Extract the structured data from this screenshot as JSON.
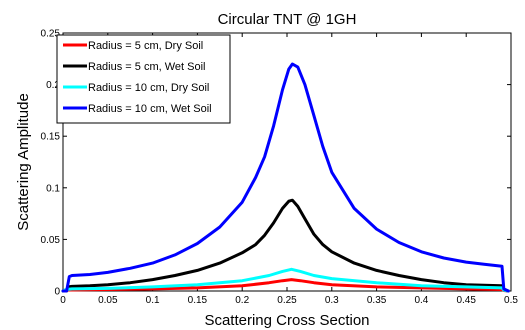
{
  "chart_data": {
    "type": "line",
    "title": "Circular TNT @ 1GH",
    "xlabel": "Scattering Cross Section",
    "ylabel": "Scattering Amplitude",
    "xlim": [
      0,
      0.5
    ],
    "ylim": [
      0,
      0.25
    ],
    "x_ticks": [
      "0",
      "0.05",
      "0.1",
      "0.15",
      "0.2",
      "0.25",
      "0.3",
      "0.35",
      "0.4",
      "0.45",
      "0.5"
    ],
    "y_ticks": [
      "0",
      "0.05",
      "0.1",
      "0.15",
      "0.2",
      "0.25"
    ],
    "grid": false,
    "legend_position": "top-left",
    "series": [
      {
        "name": "Radius = 5 cm, Dry Soil",
        "color": "#ff0000",
        "points": [
          [
            0.0,
            0
          ],
          [
            0.002,
            0.001
          ],
          [
            0.01,
            0.001
          ],
          [
            0.05,
            0.0015
          ],
          [
            0.1,
            0.002
          ],
          [
            0.15,
            0.003
          ],
          [
            0.2,
            0.005
          ],
          [
            0.23,
            0.008
          ],
          [
            0.245,
            0.01
          ],
          [
            0.255,
            0.011
          ],
          [
            0.265,
            0.01
          ],
          [
            0.28,
            0.008
          ],
          [
            0.3,
            0.006
          ],
          [
            0.35,
            0.004
          ],
          [
            0.4,
            0.003
          ],
          [
            0.45,
            0.002
          ],
          [
            0.49,
            0.0015
          ],
          [
            0.492,
            0.0005
          ],
          [
            0.497,
            0
          ]
        ]
      },
      {
        "name": "Radius = 5 cm, Wet Soil",
        "color": "#000000",
        "points": [
          [
            0.0,
            0
          ],
          [
            0.004,
            0
          ],
          [
            0.006,
            0.004
          ],
          [
            0.01,
            0.0045
          ],
          [
            0.03,
            0.005
          ],
          [
            0.05,
            0.006
          ],
          [
            0.075,
            0.008
          ],
          [
            0.1,
            0.011
          ],
          [
            0.125,
            0.015
          ],
          [
            0.15,
            0.02
          ],
          [
            0.175,
            0.027
          ],
          [
            0.2,
            0.037
          ],
          [
            0.215,
            0.045
          ],
          [
            0.225,
            0.054
          ],
          [
            0.235,
            0.066
          ],
          [
            0.245,
            0.08
          ],
          [
            0.252,
            0.087
          ],
          [
            0.256,
            0.088
          ],
          [
            0.262,
            0.082
          ],
          [
            0.27,
            0.07
          ],
          [
            0.28,
            0.055
          ],
          [
            0.29,
            0.045
          ],
          [
            0.3,
            0.038
          ],
          [
            0.325,
            0.027
          ],
          [
            0.35,
            0.02
          ],
          [
            0.375,
            0.015
          ],
          [
            0.4,
            0.011
          ],
          [
            0.425,
            0.008
          ],
          [
            0.45,
            0.006
          ],
          [
            0.47,
            0.0055
          ],
          [
            0.49,
            0.005
          ],
          [
            0.492,
            0.001
          ],
          [
            0.497,
            0
          ]
        ]
      },
      {
        "name": "Radius = 10 cm, Dry Soil",
        "color": "#00ffff",
        "points": [
          [
            0.0,
            0
          ],
          [
            0.003,
            0.0015
          ],
          [
            0.01,
            0.002
          ],
          [
            0.05,
            0.0025
          ],
          [
            0.1,
            0.004
          ],
          [
            0.15,
            0.006
          ],
          [
            0.2,
            0.01
          ],
          [
            0.23,
            0.015
          ],
          [
            0.245,
            0.019
          ],
          [
            0.255,
            0.021
          ],
          [
            0.265,
            0.019
          ],
          [
            0.28,
            0.015
          ],
          [
            0.3,
            0.012
          ],
          [
            0.35,
            0.008
          ],
          [
            0.4,
            0.005
          ],
          [
            0.45,
            0.004
          ],
          [
            0.49,
            0.003
          ],
          [
            0.492,
            0.001
          ],
          [
            0.497,
            0
          ]
        ]
      },
      {
        "name": "Radius = 10 cm, Wet Soil",
        "color": "#0000ff",
        "points": [
          [
            0.0,
            0
          ],
          [
            0.004,
            0
          ],
          [
            0.007,
            0.014
          ],
          [
            0.01,
            0.015
          ],
          [
            0.03,
            0.016
          ],
          [
            0.05,
            0.018
          ],
          [
            0.075,
            0.022
          ],
          [
            0.1,
            0.027
          ],
          [
            0.125,
            0.035
          ],
          [
            0.15,
            0.046
          ],
          [
            0.175,
            0.062
          ],
          [
            0.2,
            0.086
          ],
          [
            0.215,
            0.11
          ],
          [
            0.225,
            0.13
          ],
          [
            0.235,
            0.16
          ],
          [
            0.245,
            0.195
          ],
          [
            0.252,
            0.215
          ],
          [
            0.256,
            0.22
          ],
          [
            0.262,
            0.217
          ],
          [
            0.27,
            0.2
          ],
          [
            0.28,
            0.17
          ],
          [
            0.29,
            0.14
          ],
          [
            0.3,
            0.115
          ],
          [
            0.325,
            0.08
          ],
          [
            0.35,
            0.06
          ],
          [
            0.375,
            0.047
          ],
          [
            0.4,
            0.038
          ],
          [
            0.425,
            0.032
          ],
          [
            0.45,
            0.028
          ],
          [
            0.47,
            0.026
          ],
          [
            0.49,
            0.024
          ],
          [
            0.492,
            0.002
          ],
          [
            0.497,
            0
          ]
        ]
      }
    ]
  }
}
